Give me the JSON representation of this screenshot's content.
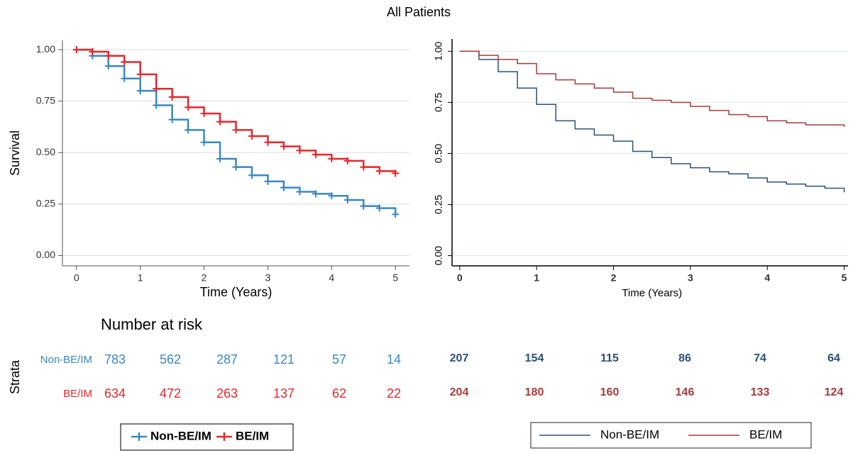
{
  "title": "All Patients",
  "chart_data": [
    {
      "type": "line",
      "step": true,
      "censor_marks": true,
      "x_label": "Time (Years)",
      "y_label": "Survival",
      "x": [
        0,
        0.25,
        0.5,
        0.75,
        1,
        1.25,
        1.5,
        1.75,
        2,
        2.25,
        2.5,
        2.75,
        3,
        3.25,
        3.5,
        3.75,
        4,
        4.25,
        4.5,
        4.75,
        5
      ],
      "series": [
        {
          "name": "Non-BE/IM",
          "color": "#3a87c4",
          "values": [
            1.0,
            0.97,
            0.92,
            0.86,
            0.8,
            0.73,
            0.66,
            0.61,
            0.55,
            0.47,
            0.43,
            0.39,
            0.36,
            0.33,
            0.31,
            0.3,
            0.29,
            0.27,
            0.24,
            0.23,
            0.2
          ],
          "at_risk": [
            783,
            562,
            287,
            121,
            57,
            14
          ]
        },
        {
          "name": "BE/IM",
          "color": "#e8262a",
          "values": [
            1.0,
            0.99,
            0.97,
            0.94,
            0.88,
            0.81,
            0.77,
            0.72,
            0.69,
            0.65,
            0.61,
            0.58,
            0.55,
            0.53,
            0.51,
            0.49,
            0.47,
            0.46,
            0.43,
            0.41,
            0.4
          ],
          "at_risk": [
            634,
            472,
            263,
            137,
            62,
            22
          ]
        }
      ],
      "xlim": [
        -0.22,
        5.22
      ],
      "xticks": [
        0,
        1,
        2,
        3,
        4,
        5
      ],
      "ylim": [
        -0.05,
        1.045
      ],
      "yticks": [
        {
          "value": 0,
          "label": "0.00"
        },
        0.25,
        {
          "value": 0.5,
          "label": "0.50"
        },
        0.75,
        {
          "value": 1,
          "label": "1.00"
        }
      ],
      "grid": true,
      "risk_title": "Number at risk",
      "risk_axis_label": "Strata"
    },
    {
      "type": "line",
      "step": true,
      "censor_marks": false,
      "x_label": "Time (Years)",
      "x": [
        0,
        0.25,
        0.5,
        0.75,
        1,
        1.25,
        1.5,
        1.75,
        2,
        2.25,
        2.5,
        2.75,
        3,
        3.25,
        3.5,
        3.75,
        4,
        4.25,
        4.5,
        4.75,
        5
      ],
      "series": [
        {
          "name": "Non-BE/IM",
          "color": "#2c5078",
          "values": [
            1.0,
            0.96,
            0.9,
            0.82,
            0.74,
            0.66,
            0.62,
            0.59,
            0.56,
            0.51,
            0.48,
            0.45,
            0.43,
            0.41,
            0.4,
            0.38,
            0.36,
            0.35,
            0.34,
            0.33,
            0.31
          ],
          "at_risk": [
            207,
            154,
            115,
            86,
            74,
            64
          ]
        },
        {
          "name": "BE/IM",
          "color": "#a83a3a",
          "values": [
            1.0,
            0.98,
            0.96,
            0.94,
            0.89,
            0.86,
            0.84,
            0.82,
            0.8,
            0.77,
            0.76,
            0.75,
            0.73,
            0.71,
            0.69,
            0.68,
            0.66,
            0.65,
            0.64,
            0.64,
            0.63
          ],
          "at_risk": [
            204,
            180,
            160,
            146,
            133,
            124
          ]
        }
      ],
      "xlim": [
        -0.1,
        5.05
      ],
      "xticks": [
        0,
        1,
        2,
        3,
        4,
        5
      ],
      "ylim": [
        -0.05,
        1.06
      ],
      "yticks": [
        {
          "value": 0,
          "label": "0.00"
        },
        0.25,
        {
          "value": 0.5,
          "label": "0.50"
        },
        0.75,
        {
          "value": 1,
          "label": "1.00"
        }
      ],
      "grid": true
    }
  ]
}
